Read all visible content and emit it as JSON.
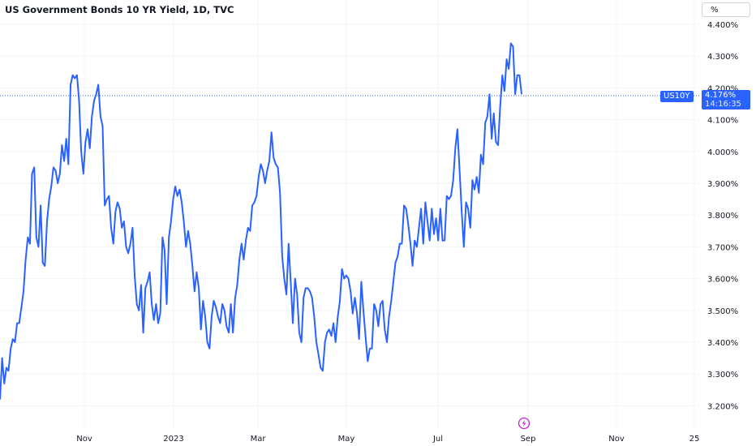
{
  "header": {
    "title": "US Government Bonds 10 YR Yield, 1D, TVC"
  },
  "scale_button": {
    "label": "%"
  },
  "last_price": {
    "symbol": "US10Y",
    "value": "4.176%",
    "countdown": "14:16:35"
  },
  "colors": {
    "line": "#2962ff",
    "grid": "#f0f3fa",
    "axis_text": "#131722",
    "event_icon": "#c026d3",
    "badge": "#2962ff"
  },
  "icons": {
    "event": "lightning-icon"
  },
  "chart_data": {
    "type": "line",
    "title": "US Government Bonds 10 YR Yield, 1D, TVC",
    "ylim": [
      3.15,
      4.47
    ],
    "grid": true,
    "x_ticks": [
      "Nov",
      "2023",
      "Mar",
      "May",
      "Jul",
      "Sep",
      "Nov",
      "25"
    ],
    "y_ticks": [
      "4.400%",
      "4.300%",
      "4.200%",
      "4.100%",
      "4.000%",
      "3.900%",
      "3.800%",
      "3.700%",
      "3.600%",
      "3.500%",
      "3.400%",
      "3.300%",
      "3.200%"
    ],
    "series": [
      {
        "name": "US10Y",
        "values": [
          3.22,
          3.35,
          3.27,
          3.32,
          3.31,
          3.38,
          3.41,
          3.4,
          3.46,
          3.46,
          3.51,
          3.56,
          3.66,
          3.73,
          3.71,
          3.93,
          3.95,
          3.73,
          3.7,
          3.83,
          3.65,
          3.64,
          3.78,
          3.85,
          3.89,
          3.95,
          3.94,
          3.9,
          3.93,
          4.02,
          3.97,
          4.04,
          3.96,
          4.21,
          4.24,
          4.23,
          4.24,
          4.16,
          4.0,
          3.93,
          4.03,
          4.07,
          4.01,
          4.11,
          4.16,
          4.18,
          4.21,
          4.11,
          4.08,
          3.83,
          3.85,
          3.86,
          3.76,
          3.71,
          3.81,
          3.84,
          3.82,
          3.76,
          3.78,
          3.7,
          3.68,
          3.71,
          3.76,
          3.61,
          3.52,
          3.5,
          3.58,
          3.43,
          3.57,
          3.59,
          3.62,
          3.52,
          3.47,
          3.52,
          3.46,
          3.49,
          3.73,
          3.69,
          3.52,
          3.73,
          3.78,
          3.85,
          3.89,
          3.86,
          3.88,
          3.84,
          3.78,
          3.7,
          3.75,
          3.71,
          3.64,
          3.56,
          3.62,
          3.57,
          3.44,
          3.53,
          3.48,
          3.4,
          3.38,
          3.48,
          3.53,
          3.51,
          3.48,
          3.46,
          3.52,
          3.5,
          3.45,
          3.43,
          3.52,
          3.43,
          3.54,
          3.58,
          3.66,
          3.71,
          3.66,
          3.72,
          3.76,
          3.75,
          3.83,
          3.84,
          3.86,
          3.92,
          3.96,
          3.94,
          3.9,
          3.94,
          3.97,
          4.06,
          3.98,
          3.96,
          3.95,
          3.87,
          3.67,
          3.6,
          3.55,
          3.71,
          3.59,
          3.46,
          3.6,
          3.55,
          3.43,
          3.4,
          3.54,
          3.57,
          3.57,
          3.56,
          3.54,
          3.48,
          3.4,
          3.36,
          3.32,
          3.31,
          3.4,
          3.43,
          3.44,
          3.42,
          3.46,
          3.4,
          3.48,
          3.53,
          3.63,
          3.6,
          3.61,
          3.6,
          3.56,
          3.49,
          3.54,
          3.49,
          3.41,
          3.59,
          3.5,
          3.42,
          3.34,
          3.38,
          3.38,
          3.52,
          3.5,
          3.45,
          3.52,
          3.53,
          3.44,
          3.4,
          3.48,
          3.53,
          3.59,
          3.65,
          3.67,
          3.71,
          3.71,
          3.83,
          3.82,
          3.77,
          3.71,
          3.64,
          3.72,
          3.7,
          3.76,
          3.82,
          3.71,
          3.84,
          3.78,
          3.72,
          3.82,
          3.74,
          3.79,
          3.72,
          3.82,
          3.72,
          3.72,
          3.86,
          3.85,
          3.86,
          3.91,
          4.01,
          4.07,
          3.94,
          3.81,
          3.7,
          3.84,
          3.82,
          3.76,
          3.91,
          3.88,
          3.92,
          3.87,
          3.99,
          3.96,
          4.09,
          4.11,
          4.18,
          4.04,
          4.12,
          4.03,
          4.02,
          4.14,
          4.24,
          4.19,
          4.29,
          4.26,
          4.34,
          4.33,
          4.18,
          4.24,
          4.24,
          4.18
        ]
      }
    ]
  }
}
